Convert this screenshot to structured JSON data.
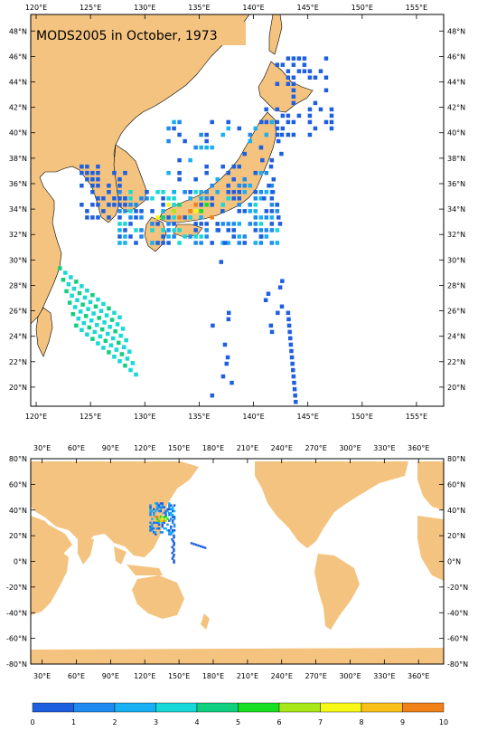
{
  "title": "MODS2005 in October, 1973",
  "top_map": {
    "lon_labels": [
      "120°E",
      "125°E",
      "130°E",
      "135°E",
      "140°E",
      "145°E",
      "150°E",
      "155°E"
    ],
    "lat_labels": [
      "20°N",
      "22°N",
      "24°N",
      "26°N",
      "28°N",
      "30°N",
      "32°N",
      "34°N",
      "36°N",
      "38°N",
      "40°N",
      "42°N",
      "44°N",
      "46°N",
      "48°N"
    ]
  },
  "bottom_map": {
    "lon_labels": [
      "30°E",
      "60°E",
      "90°E",
      "120°E",
      "150°E",
      "180°E",
      "210°E",
      "240°E",
      "270°E",
      "300°E",
      "330°E",
      "360°E"
    ],
    "lat_labels": [
      "-80°N",
      "-60°N",
      "-40°N",
      "-20°N",
      "0°N",
      "20°N",
      "40°N",
      "60°N",
      "80°N"
    ]
  },
  "colorbar": {
    "labels": [
      "0",
      "1",
      "2",
      "3",
      "4",
      "5",
      "6",
      "7",
      "8",
      "9",
      "10"
    ],
    "colors": [
      "#1e5fe0",
      "#1f8af0",
      "#17b0f2",
      "#18d8d8",
      "#10d080",
      "#18e020",
      "#a8e818",
      "#f8f818",
      "#f8c018",
      "#f08018",
      "#e83010"
    ]
  },
  "colors": {
    "land": "#f4c37f",
    "ocean": "#ffffff"
  }
}
